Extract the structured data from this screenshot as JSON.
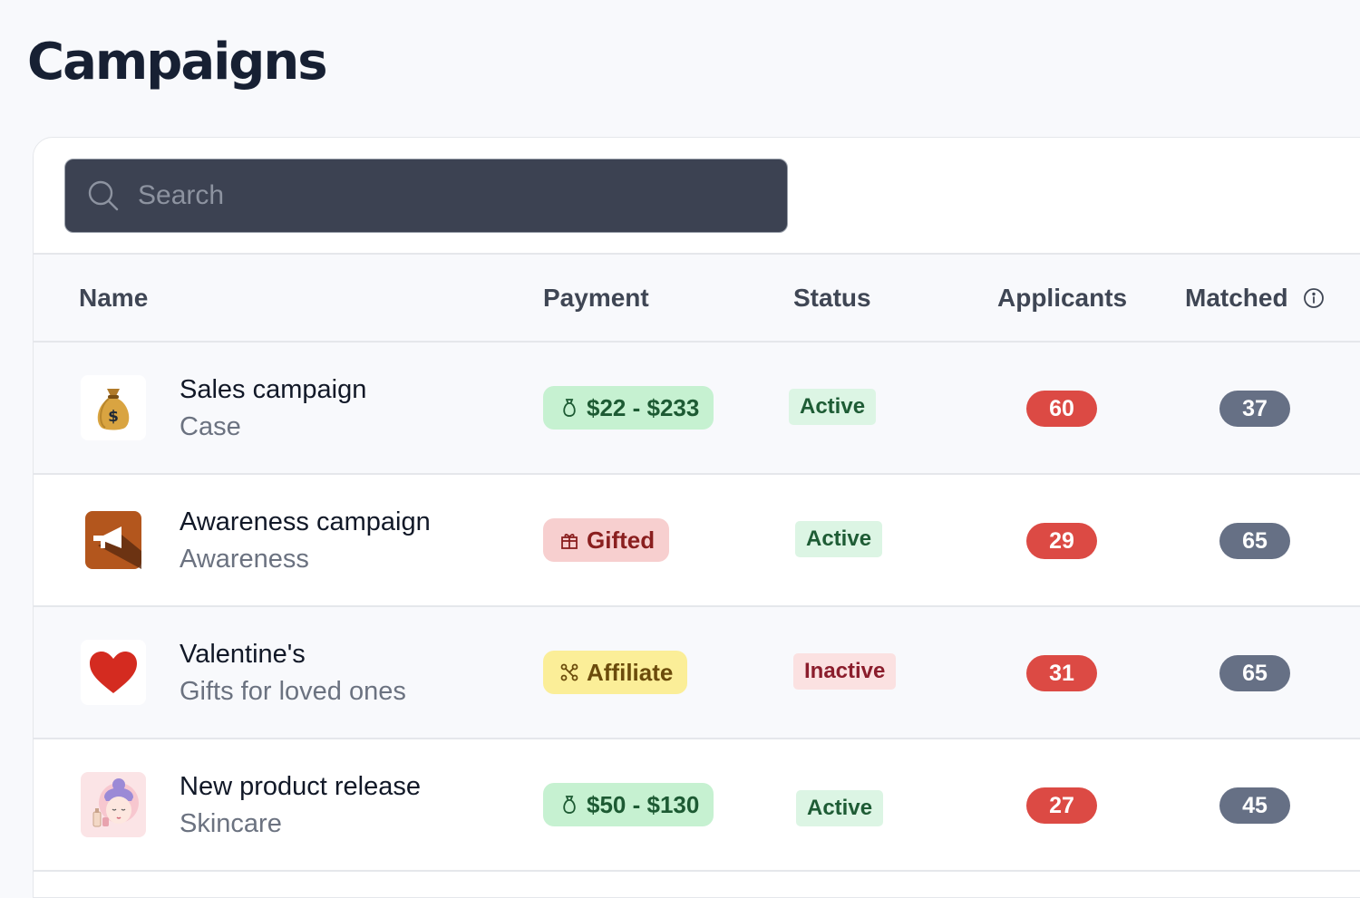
{
  "page": {
    "title": "Campaigns"
  },
  "search": {
    "placeholder": "Search",
    "value": ""
  },
  "table": {
    "columns": {
      "name": "Name",
      "payment": "Payment",
      "status": "Status",
      "applicants": "Applicants",
      "matched": "Matched"
    },
    "rows": [
      {
        "thumb_icon": "money-bag-icon",
        "name": "Sales campaign",
        "subtitle": "Case",
        "payment": "$22 - $233",
        "payment_icon": "money-bag-outline-icon",
        "status": "Active",
        "applicants": "60",
        "matched": "37"
      },
      {
        "thumb_icon": "megaphone-icon",
        "name": "Awareness campaign",
        "subtitle": "Awareness",
        "payment": "Gifted",
        "payment_icon": "gift-icon",
        "status": "Active",
        "applicants": "29",
        "matched": "65"
      },
      {
        "thumb_icon": "heart-icon",
        "name": "Valentine's",
        "subtitle": "Gifts for loved ones",
        "payment": "Affiliate",
        "payment_icon": "affiliate-network-icon",
        "status": "Inactive",
        "applicants": "31",
        "matched": "65"
      },
      {
        "thumb_icon": "skincare-face-icon",
        "name": "New product release",
        "subtitle": "Skincare",
        "payment": "$50 - $130",
        "payment_icon": "money-bag-outline-icon",
        "status": "Active",
        "applicants": "27",
        "matched": "45"
      }
    ]
  },
  "colors": {
    "applicants_badge": "#dc4a44",
    "matched_badge": "#667085",
    "status_active_bg": "#dcf5e4",
    "status_inactive_bg": "#fbe1e1",
    "payment_cash_bg": "#c6f1d1",
    "payment_gifted_bg": "#f7cfcf",
    "payment_affiliate_bg": "#fbee98"
  }
}
